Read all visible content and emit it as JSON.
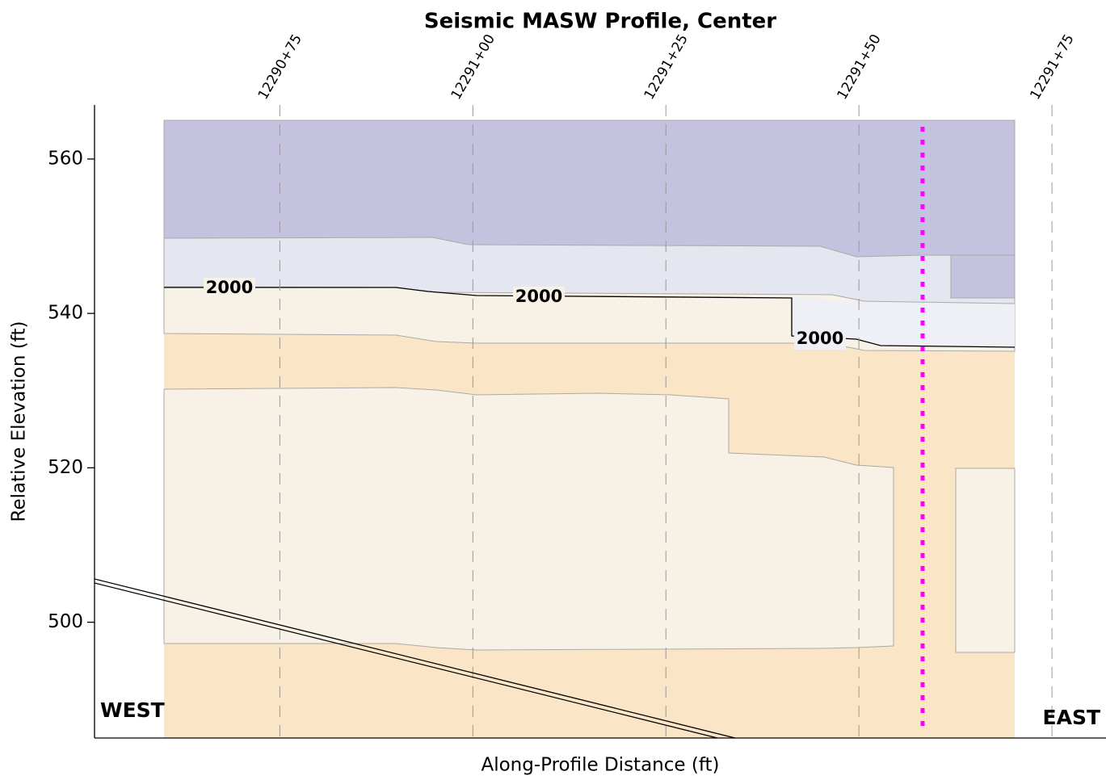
{
  "chart_data": {
    "type": "contour",
    "title": "Seismic MASW Profile, Center",
    "xlabel": "Along-Profile Distance (ft)",
    "ylabel": "Relative Elevation (ft)",
    "xlim": [
      1229051,
      1229182
    ],
    "xticks": [
      {
        "value": 1229075,
        "label": "12290+75"
      },
      {
        "value": 1229100,
        "label": "12291+00"
      },
      {
        "value": 1229125,
        "label": "12291+25"
      },
      {
        "value": 1229150,
        "label": "12291+50"
      },
      {
        "value": 1229175,
        "label": "12291+75"
      }
    ],
    "ylim": [
      485,
      567
    ],
    "yticks": [
      500,
      520,
      540,
      560
    ],
    "grid": true,
    "contour_labels": [
      2000,
      2000,
      2000
    ],
    "left_label": "WEST",
    "right_label": "EAST"
  }
}
